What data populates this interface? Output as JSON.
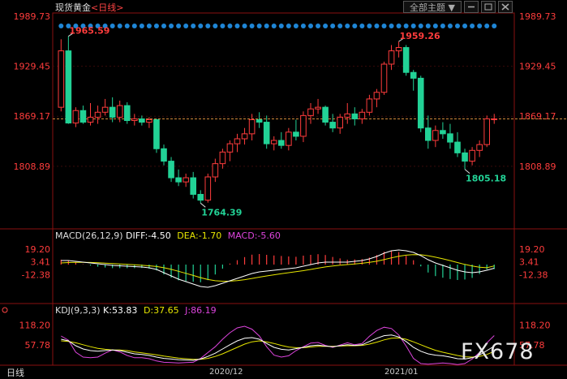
{
  "header": {
    "title": "现货黄金",
    "period": "<日线>",
    "theme_button": "全部主题",
    "theme_arrow": "▼"
  },
  "footer": {
    "period_label": "日线",
    "watermark": "FX678",
    "date_labels": [
      "2020/12",
      "2021/01"
    ]
  },
  "colors": {
    "up": "#ff3c3c",
    "down": "#22d296",
    "price_label": "#ff3c3c",
    "diff": "#ffffff",
    "dea": "#e6e600",
    "macd": "#dd44dd",
    "k": "#ffffff",
    "d": "#e6e600",
    "j": "#dd44dd",
    "dot": "#1f86d6"
  },
  "chart_data": [
    {
      "type": "candlestick",
      "title": "现货黄金 <日线>",
      "y_ticks": [
        1989.73,
        1929.45,
        1869.17,
        1808.89
      ],
      "ylim": [
        1742.2,
        1989.73
      ],
      "current_price_line": 1866,
      "annotations": [
        {
          "label": "1965.59",
          "kind": "high"
        },
        {
          "label": "1959.26",
          "kind": "high"
        },
        {
          "label": "1764.39",
          "kind": "low"
        },
        {
          "label": "1805.18",
          "kind": "low"
        }
      ],
      "candles": [
        [
          1880,
          1962,
          1875,
          1948
        ],
        [
          1948,
          1965.59,
          1860,
          1861
        ],
        [
          1861,
          1880,
          1856,
          1876
        ],
        [
          1876,
          1882,
          1860,
          1862
        ],
        [
          1862,
          1885,
          1858,
          1868
        ],
        [
          1868,
          1882,
          1860,
          1874
        ],
        [
          1874,
          1890,
          1870,
          1880
        ],
        [
          1880,
          1892,
          1862,
          1868
        ],
        [
          1868,
          1888,
          1862,
          1882
        ],
        [
          1882,
          1886,
          1860,
          1864
        ],
        [
          1864,
          1872,
          1858,
          1866
        ],
        [
          1866,
          1870,
          1858,
          1862
        ],
        [
          1862,
          1868,
          1855,
          1865
        ],
        [
          1865,
          1866,
          1825,
          1830
        ],
        [
          1830,
          1835,
          1810,
          1815
        ],
        [
          1815,
          1820,
          1790,
          1795
        ],
        [
          1795,
          1805,
          1785,
          1790
        ],
        [
          1790,
          1800,
          1784,
          1795
        ],
        [
          1795,
          1802,
          1770,
          1775
        ],
        [
          1775,
          1780,
          1764.39,
          1768
        ],
        [
          1768,
          1800,
          1765,
          1796
        ],
        [
          1796,
          1818,
          1790,
          1812
        ],
        [
          1812,
          1830,
          1806,
          1826
        ],
        [
          1826,
          1840,
          1815,
          1836
        ],
        [
          1836,
          1848,
          1826,
          1842
        ],
        [
          1842,
          1855,
          1835,
          1848
        ],
        [
          1848,
          1872,
          1840,
          1865
        ],
        [
          1865,
          1874,
          1855,
          1862
        ],
        [
          1862,
          1870,
          1830,
          1836
        ],
        [
          1836,
          1845,
          1828,
          1840
        ],
        [
          1840,
          1850,
          1830,
          1834
        ],
        [
          1834,
          1855,
          1828,
          1850
        ],
        [
          1850,
          1865,
          1840,
          1845
        ],
        [
          1845,
          1875,
          1838,
          1870
        ],
        [
          1870,
          1885,
          1860,
          1878
        ],
        [
          1878,
          1890,
          1872,
          1880
        ],
        [
          1880,
          1882,
          1858,
          1862
        ],
        [
          1862,
          1872,
          1850,
          1855
        ],
        [
          1855,
          1872,
          1848,
          1868
        ],
        [
          1868,
          1885,
          1860,
          1872
        ],
        [
          1872,
          1880,
          1858,
          1866
        ],
        [
          1866,
          1878,
          1860,
          1874
        ],
        [
          1874,
          1895,
          1870,
          1890
        ],
        [
          1890,
          1902,
          1880,
          1898
        ],
        [
          1898,
          1935,
          1895,
          1932
        ],
        [
          1932,
          1955,
          1925,
          1948
        ],
        [
          1948,
          1959.26,
          1940,
          1952
        ],
        [
          1952,
          1955,
          1918,
          1922
        ],
        [
          1922,
          1925,
          1900,
          1915
        ],
        [
          1915,
          1918,
          1850,
          1855
        ],
        [
          1855,
          1870,
          1830,
          1840
        ],
        [
          1840,
          1858,
          1832,
          1852
        ],
        [
          1852,
          1862,
          1842,
          1848
        ],
        [
          1848,
          1860,
          1830,
          1838
        ],
        [
          1838,
          1850,
          1820,
          1825
        ],
        [
          1825,
          1830,
          1805.18,
          1815
        ],
        [
          1815,
          1832,
          1810,
          1828
        ],
        [
          1828,
          1840,
          1820,
          1835
        ],
        [
          1835,
          1870,
          1832,
          1866
        ],
        [
          1866,
          1872,
          1860,
          1866
        ]
      ]
    },
    {
      "type": "line",
      "title": "MACD(26,12,9)",
      "legend": [
        {
          "name": "DIFF",
          "value": "-4.50"
        },
        {
          "name": "DEA",
          "value": "-1.70"
        },
        {
          "name": "MACD",
          "value": "-5.60"
        }
      ],
      "y_ticks": [
        19.2,
        3.41,
        -12.38
      ],
      "ylim": [
        -30,
        26
      ],
      "diff": [
        5,
        5,
        4,
        3,
        2,
        1,
        0,
        -1,
        -1.5,
        -2,
        -2.5,
        -3,
        -4,
        -6,
        -10,
        -14,
        -18,
        -21,
        -24,
        -27,
        -28,
        -26,
        -23,
        -20,
        -17,
        -14,
        -11,
        -9,
        -8,
        -7,
        -6,
        -5,
        -4,
        -2,
        0,
        2,
        3,
        3,
        3,
        3,
        4,
        5,
        7,
        10,
        14,
        17,
        18,
        17,
        15,
        11,
        6,
        2,
        -1,
        -4,
        -7,
        -9,
        -10,
        -9,
        -7,
        -4.5
      ],
      "dea": [
        2,
        2.5,
        2.8,
        2.8,
        2.6,
        2.3,
        1.8,
        1.2,
        0.7,
        0.2,
        -0.3,
        -0.9,
        -1.5,
        -2.4,
        -3.9,
        -5.9,
        -8.3,
        -10.8,
        -13.4,
        -16.1,
        -18.4,
        -19.9,
        -20.5,
        -20.4,
        -19.7,
        -18.6,
        -17.1,
        -15.5,
        -14.0,
        -12.6,
        -11.3,
        -10.0,
        -8.8,
        -7.5,
        -6.0,
        -4.4,
        -2.9,
        -1.7,
        -0.8,
        0,
        0.8,
        1.6,
        2.7,
        4.1,
        6.1,
        8.3,
        10.3,
        11.6,
        12.3,
        12.1,
        10.9,
        9.1,
        7.1,
        4.9,
        2.5,
        0.2,
        -1.8,
        -3.2,
        -3.9,
        -1.7
      ],
      "macd": [
        6,
        5,
        2.4,
        0.4,
        -1.2,
        -2.6,
        -3.6,
        -4.4,
        -4.4,
        -4.4,
        -4.4,
        -4.2,
        -5,
        -7.2,
        -12.2,
        -16.2,
        -19.4,
        -20.4,
        -21.2,
        -21.8,
        -19.2,
        -12.2,
        -5,
        1.2,
        5.4,
        9.2,
        12.2,
        13,
        12,
        11.2,
        10.6,
        10,
        9.6,
        11,
        12,
        12.8,
        11.8,
        9.4,
        7.6,
        6,
        6.4,
        6.8,
        8.6,
        11.8,
        15.8,
        17.4,
        15.4,
        10.8,
        5.4,
        -2.2,
        -9.8,
        -14.2,
        -16.2,
        -17.8,
        -19,
        -18.4,
        -16.4,
        -11.6,
        -6.2,
        -5.6
      ]
    },
    {
      "type": "line",
      "title": "KDJ(9,3,3)",
      "legend": [
        {
          "name": "K",
          "value": "53.83"
        },
        {
          "name": "D",
          "value": "37.65"
        },
        {
          "name": "J",
          "value": "86.19"
        }
      ],
      "y_ticks": [
        118.2,
        57.78
      ],
      "ylim": [
        -5,
        135
      ],
      "k": [
        75,
        70,
        55,
        45,
        40,
        38,
        40,
        42,
        40,
        35,
        30,
        28,
        25,
        20,
        16,
        14,
        12,
        11,
        10,
        14,
        22,
        32,
        45,
        58,
        70,
        78,
        80,
        75,
        62,
        50,
        44,
        42,
        46,
        50,
        55,
        57,
        54,
        52,
        55,
        58,
        56,
        58,
        68,
        78,
        86,
        88,
        82,
        68,
        50,
        38,
        30,
        26,
        24,
        20,
        15,
        14,
        18,
        26,
        40,
        53.83
      ],
      "d": [
        70,
        68,
        64,
        58,
        52,
        47,
        44,
        42,
        42,
        40,
        36,
        33,
        30,
        27,
        23,
        20,
        17,
        15,
        13,
        13,
        16,
        22,
        30,
        40,
        50,
        60,
        67,
        70,
        67,
        62,
        56,
        51,
        49,
        49,
        51,
        53,
        53,
        53,
        54,
        55,
        55,
        56,
        60,
        66,
        73,
        78,
        79,
        75,
        67,
        58,
        49,
        41,
        35,
        30,
        25,
        21,
        20,
        22,
        28,
        37.65
      ],
      "j": [
        85,
        72,
        35,
        20,
        18,
        20,
        32,
        42,
        36,
        25,
        18,
        18,
        15,
        8,
        4,
        3,
        2,
        3,
        4,
        16,
        34,
        52,
        75,
        95,
        110,
        115,
        106,
        85,
        52,
        26,
        20,
        24,
        40,
        52,
        63,
        65,
        56,
        50,
        57,
        64,
        58,
        62,
        84,
        102,
        112,
        108,
        88,
        54,
        16,
        0,
        -2,
        0,
        2,
        0,
        -3,
        0,
        14,
        34,
        64,
        86.19
      ]
    }
  ]
}
